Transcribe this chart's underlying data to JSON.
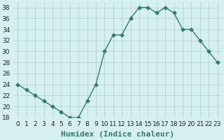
{
  "x": [
    0,
    1,
    2,
    3,
    4,
    5,
    6,
    7,
    8,
    9,
    10,
    11,
    12,
    13,
    14,
    15,
    16,
    17,
    18,
    19,
    20,
    21,
    22,
    23
  ],
  "y": [
    24,
    23,
    22,
    21,
    20,
    19,
    18,
    18,
    21,
    24,
    30,
    33,
    33,
    36,
    38,
    38,
    37,
    38,
    37,
    34,
    34,
    32,
    30,
    28
  ],
  "xlabel": "Humidex (Indice chaleur)",
  "ylim": [
    18,
    39
  ],
  "yticks": [
    18,
    20,
    22,
    24,
    26,
    28,
    30,
    32,
    34,
    36,
    38
  ],
  "xticks": [
    0,
    1,
    2,
    3,
    4,
    5,
    6,
    7,
    8,
    9,
    10,
    11,
    12,
    13,
    14,
    15,
    16,
    17,
    18,
    19,
    20,
    21,
    22,
    23
  ],
  "line_color": "#2e7d6e",
  "marker": "D",
  "marker_size": 2.5,
  "bg_color": "#d6f0ef",
  "grid_color": "#aacece",
  "line_width": 1.0,
  "xlabel_fontsize": 8,
  "tick_fontsize": 6.5
}
